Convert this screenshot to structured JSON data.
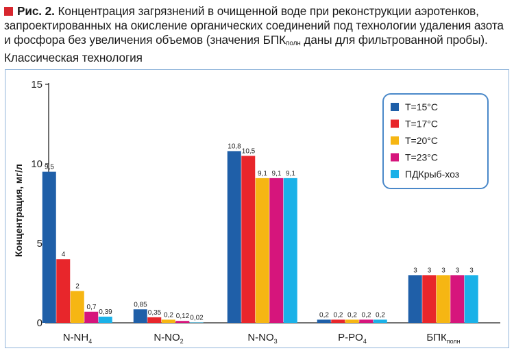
{
  "caption": {
    "figure_label": "Рис. 2.",
    "text": "Концентрация загрязнений в очищенной воде при реконструкции аэротенков, запроектированных на окисление органических соединений под технологии удаления азота и фосфора без увеличения объемов (значения БПК",
    "subscript": "полн",
    "text_end": " даны для фильтрованной пробы). Классическая технология",
    "marker_color": "#d7262e"
  },
  "chart_data": {
    "type": "bar",
    "ylabel": "Концентрация, мг/л",
    "ylim": [
      0,
      15
    ],
    "yticks": [
      0,
      5,
      10,
      15
    ],
    "grid": false,
    "legend_position": "top-right",
    "categories": [
      {
        "main": "N-NH",
        "sub": "4"
      },
      {
        "main": "N-NO",
        "sub": "2"
      },
      {
        "main": "N-NO",
        "sub": "3"
      },
      {
        "main": "P-PO",
        "sub": "4"
      },
      {
        "main": "БПК",
        "sub": "полн"
      }
    ],
    "series": [
      {
        "name": "T=15°C",
        "color": "#1f5fa8",
        "values": [
          9.5,
          0.85,
          10.8,
          0.2,
          3
        ],
        "labels": [
          "9,5",
          "0,85",
          "10,8",
          "0,2",
          "3"
        ]
      },
      {
        "name": "T=17°C",
        "color": "#e8262b",
        "values": [
          4,
          0.35,
          10.5,
          0.2,
          3
        ],
        "labels": [
          "4",
          "0,35",
          "10,5",
          "0,2",
          "3"
        ]
      },
      {
        "name": "T=20°C",
        "color": "#f6b613",
        "values": [
          2,
          0.2,
          9.1,
          0.2,
          3
        ],
        "labels": [
          "2",
          "0,2",
          "9,1",
          "0,2",
          "3"
        ]
      },
      {
        "name": "T=23°C",
        "color": "#d6157c",
        "values": [
          0.7,
          0.12,
          9.1,
          0.2,
          3
        ],
        "labels": [
          "0,7",
          "0,12",
          "9,1",
          "0,2",
          "3"
        ]
      },
      {
        "name": "ПДКрыб-хоз",
        "color": "#1ab1e8",
        "values": [
          0.39,
          0.02,
          9.1,
          0.2,
          3
        ],
        "labels": [
          "0,39",
          "0,02",
          "9,1",
          "0,2",
          "3"
        ]
      }
    ]
  }
}
